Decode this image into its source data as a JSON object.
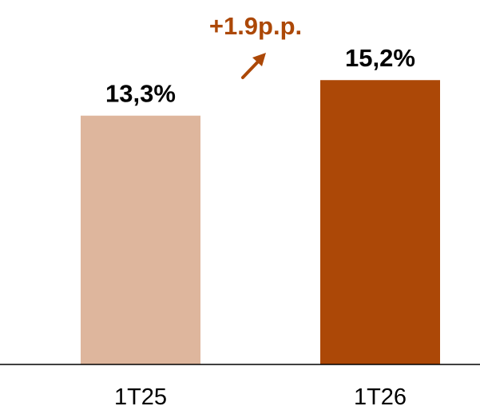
{
  "chart_data": {
    "type": "bar",
    "categories": [
      "1T25",
      "1T26"
    ],
    "values": [
      13.3,
      15.2
    ],
    "data_labels": [
      "13,3%",
      "15,2%"
    ],
    "bar_colors": [
      "#DEB69D",
      "#AC4807"
    ],
    "annotation": {
      "text": "+1.9p.p.",
      "color": "#AC4807",
      "icon": "arrow-up-right-icon"
    },
    "title": "",
    "xlabel": "",
    "ylabel": "",
    "ylim": [
      0,
      18.5
    ],
    "grid": false,
    "legend": "none"
  }
}
